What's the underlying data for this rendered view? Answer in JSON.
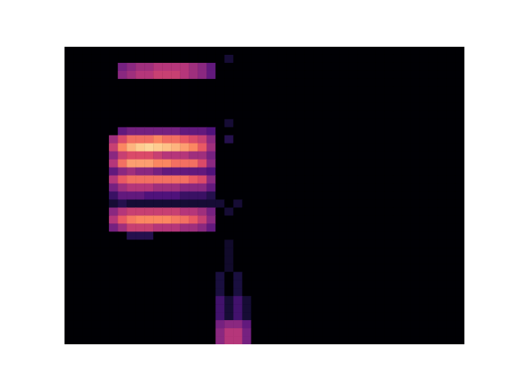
{
  "chart_data": {
    "type": "heatmap",
    "xlim": [
      0,
      45
    ],
    "ylim": [
      0,
      37
    ],
    "tick_labels": false,
    "color_range": [
      0,
      1
    ],
    "cells": [
      [
        0,
        0,
        0,
        0,
        0,
        0,
        0,
        0,
        0,
        0,
        0,
        0,
        0,
        0,
        0,
        0,
        0,
        0,
        0,
        0,
        0,
        0,
        0,
        0,
        0,
        0,
        0,
        0,
        0,
        0,
        0,
        0,
        0,
        0,
        0,
        0,
        0,
        0,
        0,
        0,
        0,
        0,
        0,
        0,
        0
      ],
      [
        0,
        0,
        0,
        0,
        0,
        0,
        0,
        0,
        0,
        0,
        0,
        0,
        0,
        0,
        0,
        0,
        0,
        0,
        0.1,
        0,
        0,
        0,
        0,
        0,
        0,
        0,
        0,
        0,
        0,
        0,
        0,
        0,
        0,
        0,
        0,
        0,
        0,
        0,
        0,
        0,
        0,
        0,
        0,
        0,
        0
      ],
      [
        0,
        0,
        0,
        0,
        0,
        0,
        0.35,
        0.4,
        0.45,
        0.45,
        0.5,
        0.5,
        0.5,
        0.5,
        0.45,
        0.4,
        0.3,
        0,
        0,
        0,
        0,
        0,
        0,
        0,
        0,
        0,
        0,
        0,
        0,
        0,
        0,
        0,
        0,
        0,
        0,
        0,
        0,
        0,
        0,
        0,
        0,
        0,
        0,
        0,
        0
      ],
      [
        0,
        0,
        0,
        0,
        0,
        0,
        0.4,
        0.45,
        0.5,
        0.5,
        0.55,
        0.55,
        0.55,
        0.5,
        0.45,
        0.4,
        0.3,
        0,
        0,
        0,
        0,
        0,
        0,
        0,
        0,
        0,
        0,
        0,
        0,
        0,
        0,
        0,
        0,
        0,
        0,
        0,
        0,
        0,
        0,
        0,
        0,
        0,
        0,
        0,
        0
      ],
      [
        0,
        0,
        0,
        0,
        0,
        0,
        0,
        0,
        0,
        0,
        0,
        0,
        0,
        0,
        0,
        0,
        0,
        0,
        0,
        0,
        0,
        0,
        0,
        0,
        0,
        0,
        0,
        0,
        0,
        0,
        0,
        0,
        0,
        0,
        0,
        0,
        0,
        0,
        0,
        0,
        0,
        0,
        0,
        0,
        0
      ],
      [
        0,
        0,
        0,
        0,
        0,
        0,
        0,
        0,
        0,
        0,
        0,
        0,
        0,
        0,
        0,
        0,
        0,
        0,
        0,
        0,
        0,
        0,
        0,
        0,
        0,
        0,
        0,
        0,
        0,
        0,
        0,
        0,
        0,
        0,
        0,
        0,
        0,
        0,
        0,
        0,
        0,
        0,
        0,
        0,
        0
      ],
      [
        0,
        0,
        0,
        0,
        0,
        0,
        0,
        0,
        0,
        0,
        0,
        0,
        0,
        0,
        0,
        0,
        0,
        0,
        0,
        0,
        0,
        0,
        0,
        0,
        0,
        0,
        0,
        0,
        0,
        0,
        0,
        0,
        0,
        0,
        0,
        0,
        0,
        0,
        0,
        0,
        0,
        0,
        0,
        0,
        0
      ],
      [
        0,
        0,
        0,
        0,
        0,
        0,
        0,
        0,
        0,
        0,
        0,
        0,
        0,
        0,
        0,
        0,
        0,
        0,
        0,
        0,
        0,
        0,
        0,
        0,
        0,
        0,
        0,
        0,
        0,
        0,
        0,
        0,
        0,
        0,
        0,
        0,
        0,
        0,
        0,
        0,
        0,
        0,
        0,
        0,
        0
      ],
      [
        0,
        0,
        0,
        0,
        0,
        0,
        0,
        0,
        0,
        0,
        0,
        0,
        0,
        0,
        0,
        0,
        0,
        0,
        0,
        0,
        0,
        0,
        0,
        0,
        0,
        0,
        0,
        0,
        0,
        0,
        0,
        0,
        0,
        0,
        0,
        0,
        0,
        0,
        0,
        0,
        0,
        0,
        0,
        0,
        0
      ],
      [
        0,
        0,
        0,
        0,
        0,
        0,
        0,
        0,
        0,
        0,
        0,
        0,
        0,
        0,
        0,
        0,
        0,
        0,
        0.1,
        0,
        0,
        0,
        0,
        0,
        0,
        0,
        0,
        0,
        0,
        0,
        0,
        0,
        0,
        0,
        0,
        0,
        0,
        0,
        0,
        0,
        0,
        0,
        0,
        0,
        0
      ],
      [
        0,
        0,
        0,
        0,
        0,
        0,
        0.3,
        0.35,
        0.35,
        0.35,
        0.35,
        0.35,
        0.35,
        0.3,
        0.3,
        0.3,
        0.25,
        0,
        0,
        0,
        0,
        0,
        0,
        0,
        0,
        0,
        0,
        0,
        0,
        0,
        0,
        0,
        0,
        0,
        0,
        0,
        0,
        0,
        0,
        0,
        0,
        0,
        0,
        0,
        0
      ],
      [
        0,
        0,
        0,
        0,
        0,
        0.45,
        0.6,
        0.7,
        0.7,
        0.7,
        0.75,
        0.7,
        0.7,
        0.65,
        0.6,
        0.55,
        0.4,
        0,
        0.15,
        0,
        0,
        0,
        0,
        0,
        0,
        0,
        0,
        0,
        0,
        0,
        0,
        0,
        0,
        0,
        0,
        0,
        0,
        0,
        0,
        0,
        0,
        0,
        0,
        0,
        0
      ],
      [
        0,
        0,
        0,
        0,
        0,
        0.55,
        0.75,
        0.85,
        0.9,
        0.92,
        0.9,
        0.88,
        0.85,
        0.8,
        0.75,
        0.65,
        0.45,
        0,
        0,
        0,
        0,
        0,
        0,
        0,
        0,
        0,
        0,
        0,
        0,
        0,
        0,
        0,
        0,
        0,
        0,
        0,
        0,
        0,
        0,
        0,
        0,
        0,
        0,
        0,
        0
      ],
      [
        0,
        0,
        0,
        0,
        0,
        0.4,
        0.55,
        0.6,
        0.6,
        0.6,
        0.55,
        0.5,
        0.5,
        0.5,
        0.45,
        0.45,
        0.35,
        0,
        0,
        0,
        0,
        0,
        0,
        0,
        0,
        0,
        0,
        0,
        0,
        0,
        0,
        0,
        0,
        0,
        0,
        0,
        0,
        0,
        0,
        0,
        0,
        0,
        0,
        0,
        0
      ],
      [
        0,
        0,
        0,
        0,
        0,
        0.5,
        0.7,
        0.8,
        0.8,
        0.8,
        0.75,
        0.75,
        0.7,
        0.7,
        0.7,
        0.6,
        0.4,
        0,
        0,
        0,
        0,
        0,
        0,
        0,
        0,
        0,
        0,
        0,
        0,
        0,
        0,
        0,
        0,
        0,
        0,
        0,
        0,
        0,
        0,
        0,
        0,
        0,
        0,
        0,
        0
      ],
      [
        0,
        0,
        0,
        0,
        0,
        0.3,
        0.4,
        0.45,
        0.4,
        0.4,
        0.35,
        0.3,
        0.3,
        0.3,
        0.3,
        0.3,
        0.25,
        0,
        0,
        0,
        0,
        0,
        0,
        0,
        0,
        0,
        0,
        0,
        0,
        0,
        0,
        0,
        0,
        0,
        0,
        0,
        0,
        0,
        0,
        0,
        0,
        0,
        0,
        0,
        0
      ],
      [
        0,
        0,
        0,
        0,
        0,
        0.5,
        0.65,
        0.7,
        0.7,
        0.7,
        0.7,
        0.7,
        0.7,
        0.7,
        0.65,
        0.6,
        0.4,
        0,
        0,
        0,
        0,
        0,
        0,
        0,
        0,
        0,
        0,
        0,
        0,
        0,
        0,
        0,
        0,
        0,
        0,
        0,
        0,
        0,
        0,
        0,
        0,
        0,
        0,
        0,
        0
      ],
      [
        0,
        0,
        0,
        0,
        0,
        0.35,
        0.45,
        0.5,
        0.5,
        0.5,
        0.45,
        0.45,
        0.45,
        0.4,
        0.4,
        0.4,
        0.3,
        0,
        0,
        0,
        0,
        0,
        0,
        0,
        0,
        0,
        0,
        0,
        0,
        0,
        0,
        0,
        0,
        0,
        0,
        0,
        0,
        0,
        0,
        0,
        0,
        0,
        0,
        0,
        0
      ],
      [
        0,
        0,
        0,
        0,
        0,
        0.2,
        0.3,
        0.3,
        0.3,
        0.25,
        0.25,
        0.25,
        0.25,
        0.2,
        0.2,
        0.2,
        0.15,
        0,
        0,
        0,
        0,
        0,
        0,
        0,
        0,
        0,
        0,
        0,
        0,
        0,
        0,
        0,
        0,
        0,
        0,
        0,
        0,
        0,
        0,
        0,
        0,
        0,
        0,
        0,
        0
      ],
      [
        0,
        0,
        0,
        0,
        0,
        0.1,
        0.15,
        0.1,
        0.1,
        0.1,
        0.1,
        0.1,
        0.1,
        0.1,
        0.1,
        0.1,
        0.1,
        0.1,
        0,
        0.1,
        0,
        0,
        0,
        0,
        0,
        0,
        0,
        0,
        0,
        0,
        0,
        0,
        0,
        0,
        0,
        0,
        0,
        0,
        0,
        0,
        0,
        0,
        0,
        0,
        0
      ],
      [
        0,
        0,
        0,
        0,
        0,
        0.4,
        0.5,
        0.55,
        0.55,
        0.55,
        0.55,
        0.55,
        0.55,
        0.5,
        0.5,
        0.45,
        0.35,
        0,
        0.1,
        0,
        0,
        0,
        0,
        0,
        0,
        0,
        0,
        0,
        0,
        0,
        0,
        0,
        0,
        0,
        0,
        0,
        0,
        0,
        0,
        0,
        0,
        0,
        0,
        0,
        0
      ],
      [
        0,
        0,
        0,
        0,
        0,
        0.5,
        0.65,
        0.72,
        0.75,
        0.75,
        0.75,
        0.75,
        0.72,
        0.7,
        0.65,
        0.55,
        0.4,
        0,
        0,
        0,
        0,
        0,
        0,
        0,
        0,
        0,
        0,
        0,
        0,
        0,
        0,
        0,
        0,
        0,
        0,
        0,
        0,
        0,
        0,
        0,
        0,
        0,
        0,
        0,
        0
      ],
      [
        0,
        0,
        0,
        0,
        0,
        0.35,
        0.45,
        0.55,
        0.55,
        0.55,
        0.5,
        0.5,
        0.5,
        0.45,
        0.45,
        0.4,
        0.3,
        0,
        0,
        0,
        0,
        0,
        0,
        0,
        0,
        0,
        0,
        0,
        0,
        0,
        0,
        0,
        0,
        0,
        0,
        0,
        0,
        0,
        0,
        0,
        0,
        0,
        0,
        0,
        0
      ],
      [
        0,
        0,
        0,
        0,
        0,
        0,
        0,
        0.15,
        0.15,
        0.15,
        0,
        0,
        0,
        0,
        0,
        0,
        0,
        0,
        0,
        0,
        0,
        0,
        0,
        0,
        0,
        0,
        0,
        0,
        0,
        0,
        0,
        0,
        0,
        0,
        0,
        0,
        0,
        0,
        0,
        0,
        0,
        0,
        0,
        0,
        0
      ],
      [
        0,
        0,
        0,
        0,
        0,
        0,
        0,
        0,
        0,
        0,
        0,
        0,
        0,
        0,
        0,
        0,
        0,
        0,
        0.08,
        0,
        0,
        0,
        0,
        0,
        0,
        0,
        0,
        0,
        0,
        0,
        0,
        0,
        0,
        0,
        0,
        0,
        0,
        0,
        0,
        0,
        0,
        0,
        0,
        0,
        0
      ],
      [
        0,
        0,
        0,
        0,
        0,
        0,
        0,
        0,
        0,
        0,
        0,
        0,
        0,
        0,
        0,
        0,
        0,
        0,
        0.08,
        0,
        0,
        0,
        0,
        0,
        0,
        0,
        0,
        0,
        0,
        0,
        0,
        0,
        0,
        0,
        0,
        0,
        0,
        0,
        0,
        0,
        0,
        0,
        0,
        0,
        0
      ],
      [
        0,
        0,
        0,
        0,
        0,
        0,
        0,
        0,
        0,
        0,
        0,
        0,
        0,
        0,
        0,
        0,
        0,
        0,
        0.08,
        0,
        0,
        0,
        0,
        0,
        0,
        0,
        0,
        0,
        0,
        0,
        0,
        0,
        0,
        0,
        0,
        0,
        0,
        0,
        0,
        0,
        0,
        0,
        0,
        0,
        0
      ],
      [
        0,
        0,
        0,
        0,
        0,
        0,
        0,
        0,
        0,
        0,
        0,
        0,
        0,
        0,
        0,
        0,
        0,
        0,
        0.08,
        0,
        0,
        0,
        0,
        0,
        0,
        0,
        0,
        0,
        0,
        0,
        0,
        0,
        0,
        0,
        0,
        0,
        0,
        0,
        0,
        0,
        0,
        0,
        0,
        0,
        0
      ],
      [
        0,
        0,
        0,
        0,
        0,
        0,
        0,
        0,
        0,
        0,
        0,
        0,
        0,
        0,
        0,
        0,
        0,
        0.12,
        0,
        0.12,
        0,
        0,
        0,
        0,
        0,
        0,
        0,
        0,
        0,
        0,
        0,
        0,
        0,
        0,
        0,
        0,
        0,
        0,
        0,
        0,
        0,
        0,
        0,
        0,
        0
      ],
      [
        0,
        0,
        0,
        0,
        0,
        0,
        0,
        0,
        0,
        0,
        0,
        0,
        0,
        0,
        0,
        0,
        0,
        0.12,
        0,
        0.12,
        0,
        0,
        0,
        0,
        0,
        0,
        0,
        0,
        0,
        0,
        0,
        0,
        0,
        0,
        0,
        0,
        0,
        0,
        0,
        0,
        0,
        0,
        0,
        0,
        0
      ],
      [
        0,
        0,
        0,
        0,
        0,
        0,
        0,
        0,
        0,
        0,
        0,
        0,
        0,
        0,
        0,
        0,
        0,
        0.12,
        0,
        0.12,
        0,
        0,
        0,
        0,
        0,
        0,
        0,
        0,
        0,
        0,
        0,
        0,
        0,
        0,
        0,
        0,
        0,
        0,
        0,
        0,
        0,
        0,
        0,
        0,
        0
      ],
      [
        0,
        0,
        0,
        0,
        0,
        0,
        0,
        0,
        0,
        0,
        0,
        0,
        0,
        0,
        0,
        0,
        0,
        0.22,
        0.1,
        0.22,
        0.1,
        0,
        0,
        0,
        0,
        0,
        0,
        0,
        0,
        0,
        0,
        0,
        0,
        0,
        0,
        0,
        0,
        0,
        0,
        0,
        0,
        0,
        0,
        0,
        0
      ],
      [
        0,
        0,
        0,
        0,
        0,
        0,
        0,
        0,
        0,
        0,
        0,
        0,
        0,
        0,
        0,
        0,
        0,
        0.22,
        0.1,
        0.22,
        0.1,
        0,
        0,
        0,
        0,
        0,
        0,
        0,
        0,
        0,
        0,
        0,
        0,
        0,
        0,
        0,
        0,
        0,
        0,
        0,
        0,
        0,
        0,
        0,
        0
      ],
      [
        0,
        0,
        0,
        0,
        0,
        0,
        0,
        0,
        0,
        0,
        0,
        0,
        0,
        0,
        0,
        0,
        0,
        0.22,
        0.1,
        0.22,
        0.1,
        0,
        0,
        0,
        0,
        0,
        0,
        0,
        0,
        0,
        0,
        0,
        0,
        0,
        0,
        0,
        0,
        0,
        0,
        0,
        0,
        0,
        0,
        0,
        0
      ],
      [
        0,
        0,
        0,
        0,
        0,
        0,
        0,
        0,
        0,
        0,
        0,
        0,
        0,
        0,
        0,
        0,
        0,
        0.35,
        0.4,
        0.4,
        0.3,
        0,
        0,
        0,
        0,
        0,
        0,
        0,
        0,
        0,
        0,
        0,
        0,
        0,
        0,
        0,
        0,
        0,
        0,
        0,
        0,
        0,
        0,
        0,
        0
      ],
      [
        0,
        0,
        0,
        0,
        0,
        0,
        0,
        0,
        0,
        0,
        0,
        0,
        0,
        0,
        0,
        0,
        0,
        0.4,
        0.5,
        0.5,
        0.35,
        0,
        0,
        0,
        0,
        0,
        0,
        0,
        0,
        0,
        0,
        0,
        0,
        0,
        0,
        0,
        0,
        0,
        0,
        0,
        0,
        0,
        0,
        0,
        0
      ],
      [
        0,
        0,
        0,
        0,
        0,
        0,
        0,
        0,
        0,
        0,
        0,
        0,
        0,
        0,
        0,
        0,
        0,
        0.4,
        0.5,
        0.5,
        0.35,
        0,
        0,
        0,
        0,
        0,
        0,
        0,
        0,
        0,
        0,
        0,
        0,
        0,
        0,
        0,
        0,
        0,
        0,
        0,
        0,
        0,
        0,
        0,
        0
      ]
    ]
  }
}
